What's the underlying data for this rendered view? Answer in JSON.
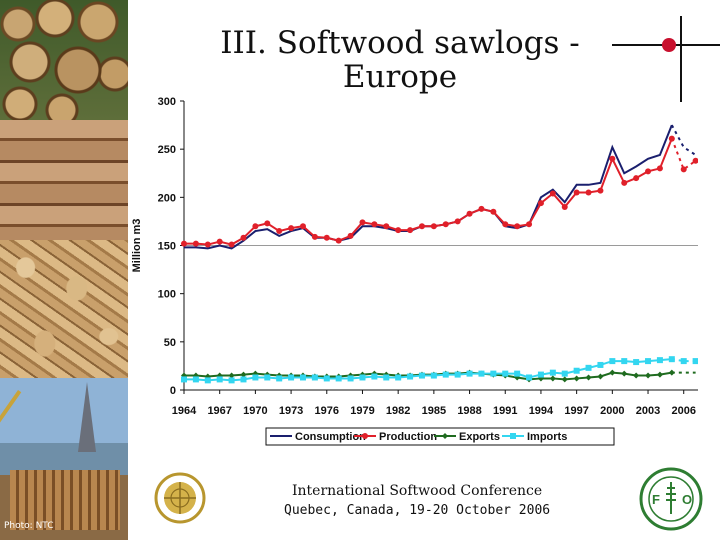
{
  "title": {
    "line1": "III. Softwood sawlogs -",
    "line2": "Europe"
  },
  "photo_credit": "Photo: NTC",
  "footer": {
    "conference": "International Softwood Conference",
    "location": "Quebec, Canada, 19-20 October 2006"
  },
  "colors": {
    "consumption": "#1a1f6e",
    "production": "#e0202a",
    "exports": "#1f6b1f",
    "imports": "#33d6f0",
    "accent_dot": "#c8102e"
  },
  "chart_data": {
    "type": "line",
    "ylabel": "Million m3",
    "xlabel": "",
    "ylim": [
      0,
      300
    ],
    "y_ticks": [
      "0",
      "50",
      "100",
      "150",
      "200",
      "250",
      "300"
    ],
    "x_ticks": [
      "1964",
      "1967",
      "1970",
      "1973",
      "1976",
      "1979",
      "1982",
      "1985",
      "1988",
      "1991",
      "1994",
      "1997",
      "2000",
      "2003",
      "2006"
    ],
    "legend_position": "bottom",
    "grid": false,
    "reference_line_y": 150,
    "x": [
      1964,
      1965,
      1966,
      1967,
      1968,
      1969,
      1970,
      1971,
      1972,
      1973,
      1974,
      1975,
      1976,
      1977,
      1978,
      1979,
      1980,
      1981,
      1982,
      1983,
      1984,
      1985,
      1986,
      1987,
      1988,
      1989,
      1990,
      1991,
      1992,
      1993,
      1994,
      1995,
      1996,
      1997,
      1998,
      1999,
      2000,
      2001,
      2002,
      2003,
      2004,
      2005
    ],
    "forecast_x": [
      2005,
      2006,
      2007
    ],
    "series": [
      {
        "name": "Consumption",
        "values": [
          148,
          148,
          147,
          150,
          147,
          155,
          165,
          167,
          160,
          165,
          168,
          158,
          158,
          155,
          158,
          170,
          170,
          168,
          165,
          165,
          170,
          170,
          172,
          175,
          183,
          188,
          185,
          170,
          168,
          172,
          200,
          208,
          195,
          213,
          213,
          215,
          252,
          225,
          232,
          240,
          244,
          275
        ],
        "forecast": [
          275,
          252,
          244
        ]
      },
      {
        "name": "Production",
        "values": [
          152,
          152,
          151,
          154,
          151,
          158,
          170,
          173,
          165,
          168,
          170,
          159,
          158,
          155,
          160,
          174,
          172,
          170,
          166,
          166,
          170,
          170,
          172,
          175,
          183,
          188,
          185,
          172,
          170,
          172,
          194,
          204,
          190,
          205,
          205,
          207,
          240,
          215,
          220,
          227,
          230,
          261
        ],
        "forecast": [
          261,
          229,
          238
        ]
      },
      {
        "name": "Exports",
        "values": [
          15,
          15,
          14,
          15,
          15,
          16,
          17,
          16,
          15,
          15,
          15,
          14,
          14,
          14,
          15,
          16,
          17,
          16,
          15,
          15,
          16,
          16,
          17,
          17,
          18,
          17,
          16,
          15,
          13,
          11,
          12,
          12,
          11,
          12,
          13,
          14,
          18,
          17,
          15,
          15,
          16,
          18
        ],
        "forecast": [
          18,
          18,
          18
        ]
      },
      {
        "name": "Imports",
        "values": [
          11,
          11,
          10,
          11,
          10,
          11,
          13,
          13,
          12,
          13,
          13,
          13,
          12,
          12,
          12,
          13,
          14,
          13,
          13,
          14,
          15,
          15,
          16,
          16,
          17,
          17,
          17,
          17,
          17,
          13,
          16,
          18,
          17,
          20,
          23,
          26,
          30,
          30,
          29,
          30,
          31,
          32
        ],
        "forecast": [
          32,
          30,
          30
        ]
      }
    ]
  }
}
